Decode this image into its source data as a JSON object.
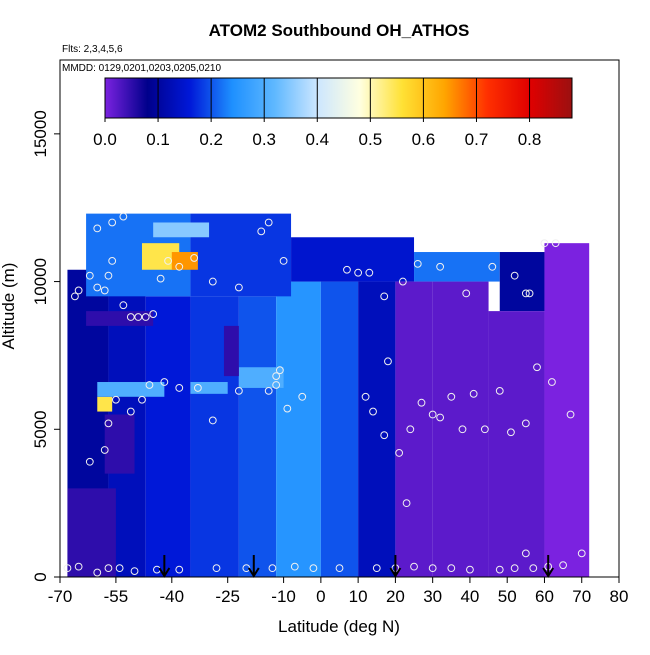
{
  "chart_data": {
    "type": "heatmap",
    "title": "ATOM2 Southbound OH_ATHOS",
    "subtitle_flights": "Flts: 2,3,4,5,6",
    "subtitle_dates": "MMDD: 0129,0201,0203,0205,0210",
    "xlabel": "Latitude (deg N)",
    "ylabel": "Altitude (m)",
    "xlim": [
      -70,
      80
    ],
    "ylim": [
      0,
      17500
    ],
    "x_ticks": [
      -70,
      -55,
      -40,
      -25,
      -10,
      0,
      10,
      20,
      30,
      40,
      50,
      60,
      70,
      80
    ],
    "y_ticks": [
      0,
      5000,
      10000,
      15000
    ],
    "colorbar": {
      "range": [
        0.0,
        0.88
      ],
      "ticks": [
        0.0,
        0.1,
        0.2,
        0.3,
        0.4,
        0.5,
        0.6,
        0.7,
        0.8
      ],
      "tick_labels": [
        "0.0",
        "0.1",
        "0.2",
        "0.3",
        "0.4",
        "0.5",
        "0.6",
        "0.7",
        "0.8"
      ],
      "colors": [
        "#7b22e0",
        "#00008b",
        "#0018d8",
        "#1e90ff",
        "#5fb8ff",
        "#cce6ff",
        "#ffffe0",
        "#ffe135",
        "#ffa500",
        "#ff3000",
        "#e00000",
        "#9b1010"
      ]
    },
    "arrows_lat": [
      -42,
      -18,
      20,
      61
    ],
    "field_cells": [
      {
        "lat0": -68,
        "lat1": -57,
        "alt0": 0,
        "alt1": 10400,
        "value": 0.1
      },
      {
        "lat0": -57,
        "lat1": -47,
        "alt0": 0,
        "alt1": 10600,
        "value": 0.13
      },
      {
        "lat0": -47,
        "lat1": -35,
        "alt0": 0,
        "alt1": 9500,
        "value": 0.16
      },
      {
        "lat0": -35,
        "lat1": -22,
        "alt0": 0,
        "alt1": 9500,
        "value": 0.18
      },
      {
        "lat0": -22,
        "lat1": -12,
        "alt0": 0,
        "alt1": 9500,
        "value": 0.2
      },
      {
        "lat0": -12,
        "lat1": 0,
        "alt0": 0,
        "alt1": 10000,
        "value": 0.25
      },
      {
        "lat0": 0,
        "lat1": 10,
        "alt0": 0,
        "alt1": 10000,
        "value": 0.2
      },
      {
        "lat0": 10,
        "lat1": 20,
        "alt0": 0,
        "alt1": 10000,
        "value": 0.13
      },
      {
        "lat0": -63,
        "lat1": -35,
        "alt0": 9500,
        "alt1": 12300,
        "value": 0.22
      },
      {
        "lat0": -35,
        "lat1": -8,
        "alt0": 9500,
        "alt1": 12300,
        "value": 0.18
      },
      {
        "lat0": -8,
        "lat1": 25,
        "alt0": 10000,
        "alt1": 11500,
        "value": 0.15
      },
      {
        "lat0": 25,
        "lat1": 48,
        "alt0": 10000,
        "alt1": 11000,
        "value": 0.22
      },
      {
        "lat0": 48,
        "lat1": 60,
        "alt0": 9000,
        "alt1": 11000,
        "value": 0.1
      },
      {
        "lat0": 20,
        "lat1": 30,
        "alt0": 0,
        "alt1": 10000,
        "value": 0.02
      },
      {
        "lat0": 30,
        "lat1": 45,
        "alt0": 0,
        "alt1": 10000,
        "value": 0.02
      },
      {
        "lat0": 45,
        "lat1": 60,
        "alt0": 0,
        "alt1": 9000,
        "value": 0.02
      },
      {
        "lat0": 60,
        "lat1": 72,
        "alt0": 0,
        "alt1": 11300,
        "value": 0.0
      },
      {
        "lat0": -48,
        "lat1": -38,
        "alt0": 10400,
        "alt1": 11300,
        "value": 0.55
      },
      {
        "lat0": -40,
        "lat1": -33,
        "alt0": 10400,
        "alt1": 11000,
        "value": 0.65
      },
      {
        "lat0": -45,
        "lat1": -30,
        "alt0": 11500,
        "alt1": 12000,
        "value": 0.35
      },
      {
        "lat0": -60,
        "lat1": -56,
        "alt0": 5600,
        "alt1": 6100,
        "value": 0.55
      },
      {
        "lat0": -60,
        "lat1": -42,
        "alt0": 6100,
        "alt1": 6600,
        "value": 0.3
      },
      {
        "lat0": -35,
        "lat1": -25,
        "alt0": 6200,
        "alt1": 6600,
        "value": 0.3
      },
      {
        "lat0": -22,
        "lat1": -10,
        "alt0": 6400,
        "alt1": 7100,
        "value": 0.3
      },
      {
        "lat0": -26,
        "lat1": -22,
        "alt0": 6800,
        "alt1": 8500,
        "value": 0.05
      },
      {
        "lat0": -63,
        "lat1": -45,
        "alt0": 8500,
        "alt1": 9000,
        "value": 0.05
      },
      {
        "lat0": -58,
        "lat1": -50,
        "alt0": 3500,
        "alt1": 5500,
        "value": 0.05
      },
      {
        "lat0": -68,
        "lat1": -55,
        "alt0": 0,
        "alt1": 3000,
        "value": 0.05
      }
    ],
    "observations": [
      [
        -68,
        300
      ],
      [
        -65,
        350
      ],
      [
        -60,
        150
      ],
      [
        -57,
        300
      ],
      [
        -54,
        300
      ],
      [
        -50,
        200
      ],
      [
        -44,
        250
      ],
      [
        -38,
        250
      ],
      [
        -28,
        300
      ],
      [
        -20,
        300
      ],
      [
        -13,
        300
      ],
      [
        -7,
        350
      ],
      [
        -2,
        300
      ],
      [
        5,
        300
      ],
      [
        15,
        300
      ],
      [
        20,
        300
      ],
      [
        25,
        350
      ],
      [
        30,
        300
      ],
      [
        35,
        300
      ],
      [
        40,
        250
      ],
      [
        48,
        250
      ],
      [
        52,
        300
      ],
      [
        57,
        300
      ],
      [
        61,
        350
      ],
      [
        65,
        400
      ],
      [
        70,
        800
      ],
      [
        55,
        800
      ],
      [
        -62,
        3900
      ],
      [
        -58,
        4300
      ],
      [
        -57,
        5200
      ],
      [
        -55,
        6000
      ],
      [
        -51,
        5600
      ],
      [
        -48,
        6000
      ],
      [
        -46,
        6500
      ],
      [
        -42,
        6600
      ],
      [
        -38,
        6400
      ],
      [
        -33,
        6400
      ],
      [
        -29,
        5300
      ],
      [
        -22,
        6300
      ],
      [
        -14,
        6300
      ],
      [
        -12,
        6500
      ],
      [
        -12,
        6800
      ],
      [
        -11,
        7000
      ],
      [
        -9,
        5700
      ],
      [
        -5,
        6100
      ],
      [
        12,
        6100
      ],
      [
        14,
        5600
      ],
      [
        18,
        7300
      ],
      [
        17,
        4800
      ],
      [
        21,
        4200
      ],
      [
        23,
        2500
      ],
      [
        24,
        5000
      ],
      [
        27,
        5900
      ],
      [
        30,
        5500
      ],
      [
        32,
        5400
      ],
      [
        35,
        6100
      ],
      [
        38,
        5000
      ],
      [
        41,
        6200
      ],
      [
        44,
        5000
      ],
      [
        48,
        6300
      ],
      [
        51,
        4900
      ],
      [
        55,
        5200
      ],
      [
        58,
        7100
      ],
      [
        62,
        6600
      ],
      [
        67,
        5500
      ],
      [
        -62,
        10200
      ],
      [
        -60,
        9800
      ],
      [
        -58,
        9700
      ],
      [
        -57,
        10200
      ],
      [
        -56,
        10700
      ],
      [
        -53,
        9200
      ],
      [
        -51,
        8800
      ],
      [
        -49,
        8800
      ],
      [
        -47,
        8800
      ],
      [
        -45,
        8900
      ],
      [
        -43,
        10100
      ],
      [
        -41,
        10700
      ],
      [
        -38,
        10500
      ],
      [
        -34,
        10800
      ],
      [
        -29,
        10000
      ],
      [
        -22,
        9800
      ],
      [
        -16,
        11700
      ],
      [
        -14,
        12000
      ],
      [
        -10,
        10700
      ],
      [
        7,
        10400
      ],
      [
        10,
        10300
      ],
      [
        13,
        10300
      ],
      [
        17,
        9500
      ],
      [
        22,
        10000
      ],
      [
        26,
        10600
      ],
      [
        32,
        10500
      ],
      [
        39,
        9600
      ],
      [
        46,
        10500
      ],
      [
        52,
        10200
      ],
      [
        55,
        9600
      ],
      [
        56,
        9600
      ],
      [
        60,
        11300
      ],
      [
        63,
        11300
      ],
      [
        -60,
        11800
      ],
      [
        -56,
        12000
      ],
      [
        -53,
        12200
      ],
      [
        -66,
        9500
      ],
      [
        -65,
        9700
      ]
    ]
  }
}
